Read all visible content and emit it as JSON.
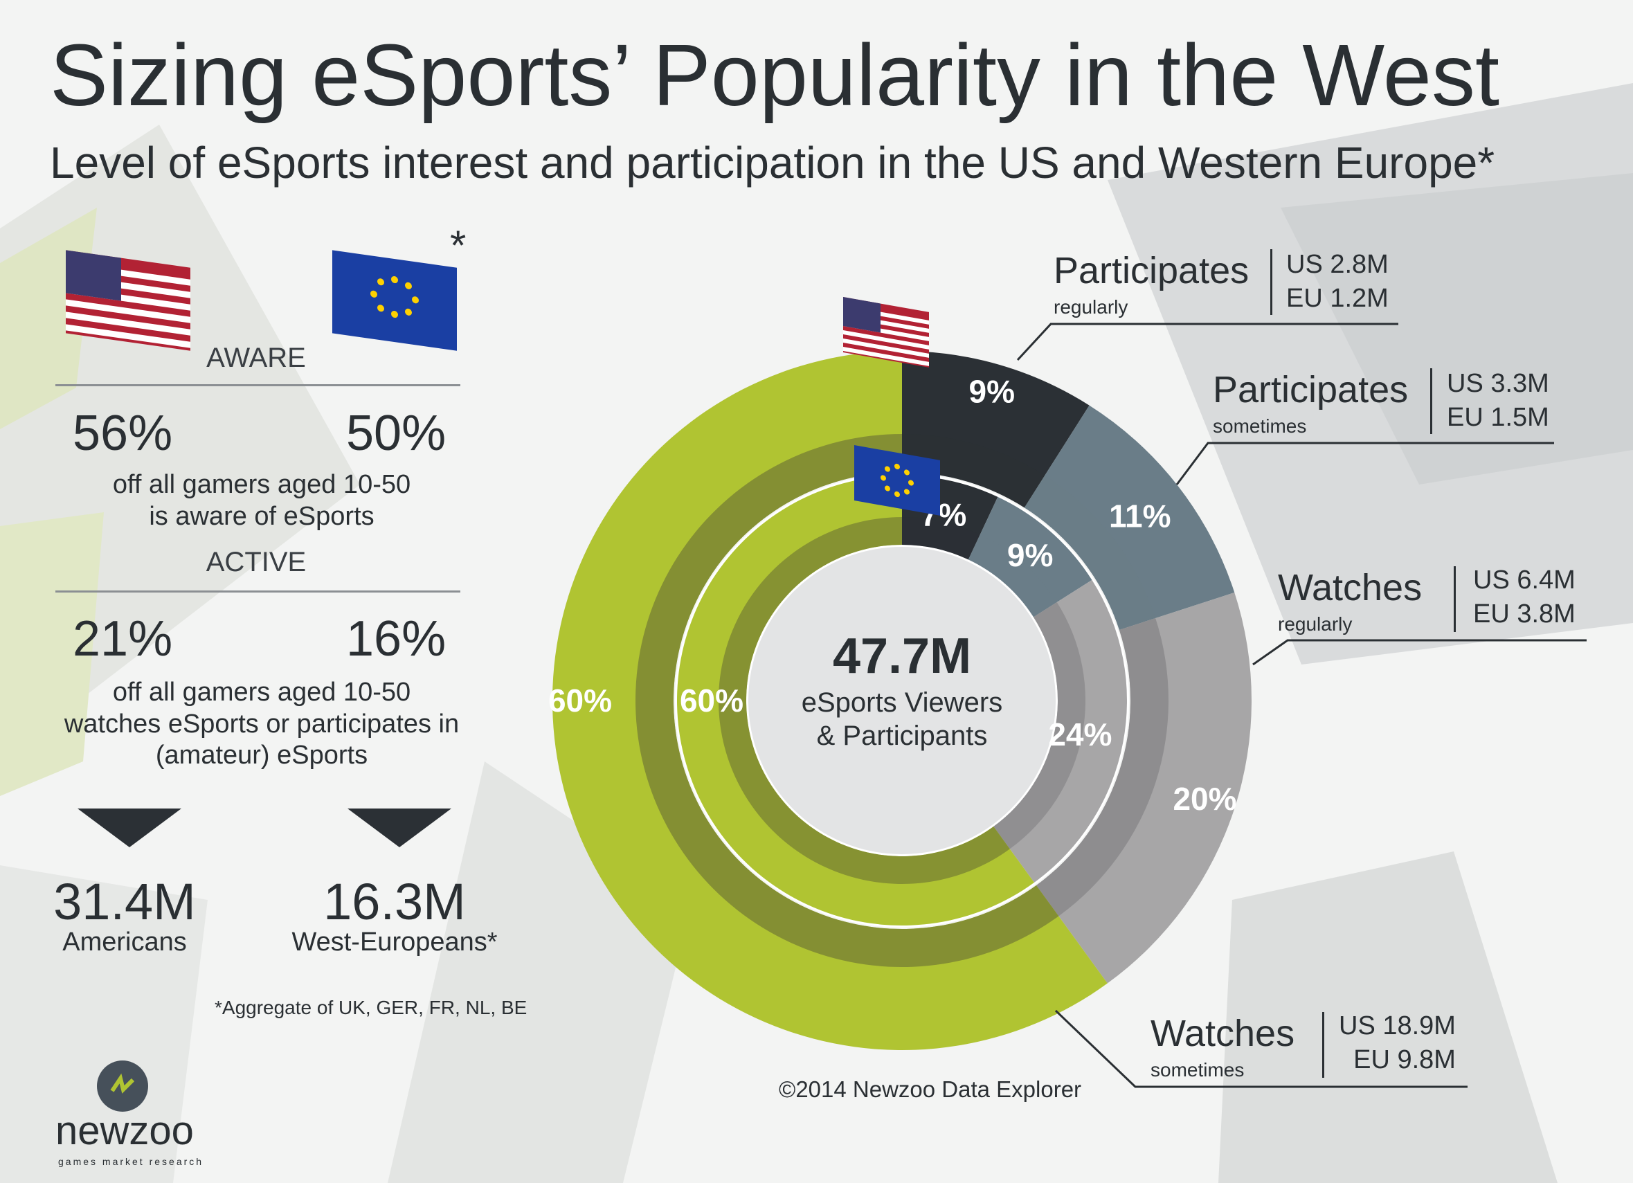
{
  "title": "Sizing eSports’ Popularity in the West",
  "subtitle": "Level of eSports interest and participation in the US and Western Europe*",
  "eu_flag_asterisk": "*",
  "aware": {
    "heading": "AWARE",
    "us_pct": "56%",
    "eu_pct": "50%",
    "note": [
      "off all gamers aged 10-50",
      "is aware of eSports"
    ]
  },
  "active": {
    "heading": "ACTIVE",
    "us_pct": "21%",
    "eu_pct": "16%",
    "note": [
      "off all gamers aged 10-50",
      "watches eSports or participates in",
      "(amateur) eSports"
    ]
  },
  "totals": {
    "us_value": "31.4M",
    "us_label": "Americans",
    "eu_value": "16.3M",
    "eu_label": "West-Europeans*"
  },
  "footnote": "*Aggregate of UK, GER, FR, NL, BE",
  "credit": "©2014 Newzoo Data Explorer",
  "logo": {
    "name": "newzoo",
    "tagline": "games market research"
  },
  "center": {
    "value": "47.7M",
    "line1": "eSports Viewers",
    "line2": "& Participants"
  },
  "callouts": [
    {
      "main": "Participates",
      "sub": "regularly",
      "us": "US 2.8M",
      "eu": "EU 1.2M"
    },
    {
      "main": "Participates",
      "sub": "sometimes",
      "us": "US 3.3M",
      "eu": "EU 1.5M"
    },
    {
      "main": "Watches",
      "sub": "regularly",
      "us": "US 6.4M",
      "eu": "EU 3.8M"
    },
    {
      "main": "Watches",
      "sub": "sometimes",
      "us": "US 18.9M",
      "eu": "EU 9.8M"
    }
  ],
  "colors": {
    "participates_regularly": "#2b3035",
    "participates_sometimes": "#6a7d88",
    "watches_regularly": "#a7a6a7",
    "watches_sometimes": "#b0c432",
    "inner_band_dark": "#7f8a33"
  },
  "chart_data": {
    "type": "donut",
    "categories": [
      "Participates regularly",
      "Participates sometimes",
      "Watches regularly",
      "Watches sometimes"
    ],
    "series": [
      {
        "name": "US",
        "values": [
          9,
          11,
          20,
          60
        ],
        "labels": [
          "9%",
          "11%",
          "20%",
          "60%"
        ]
      },
      {
        "name": "EU",
        "values": [
          7,
          9,
          24,
          60
        ],
        "labels": [
          "7%",
          "9%",
          "24%",
          "60%"
        ]
      }
    ]
  }
}
